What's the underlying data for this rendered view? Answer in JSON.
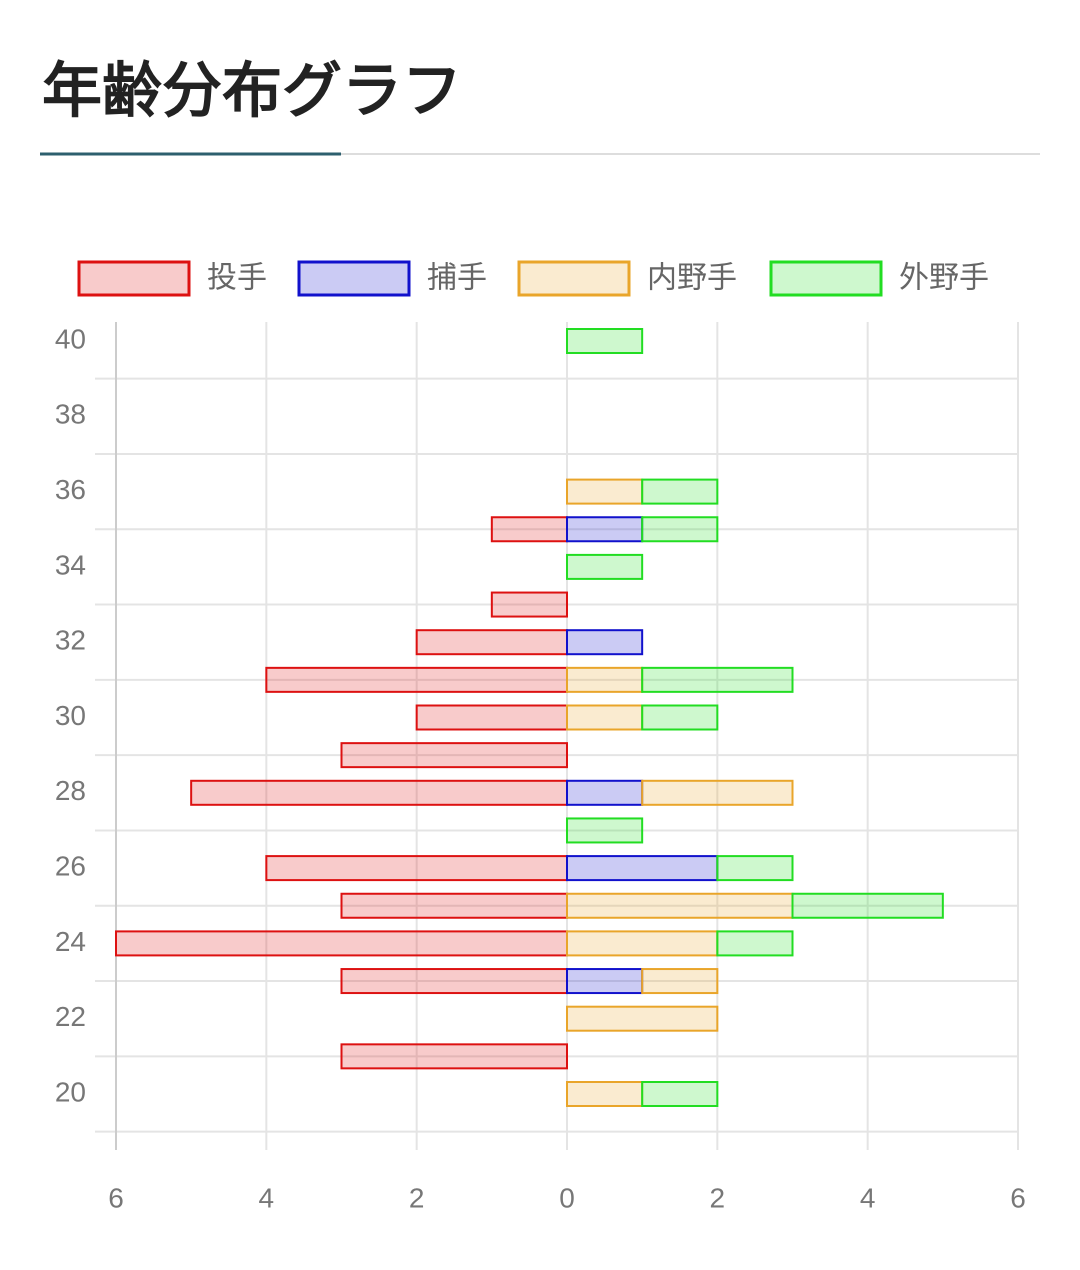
{
  "chart_data": {
    "type": "bar",
    "orientation": "horizontal",
    "stacked": true,
    "title": "年齢分布グラフ",
    "categories": [
      "40",
      null,
      "38",
      null,
      "36",
      null,
      "34",
      null,
      "32",
      null,
      "30",
      null,
      "28",
      null,
      "26",
      null,
      "24",
      null,
      "22",
      null,
      "20"
    ],
    "series": [
      {
        "name": "投手",
        "color": "#dd1111",
        "values": [
          null,
          null,
          null,
          null,
          null,
          -1,
          null,
          -1,
          -2,
          -4,
          -2,
          -3,
          -5,
          null,
          -4,
          -3,
          -6,
          -3,
          null,
          -3,
          null
        ]
      },
      {
        "name": "捕手",
        "color": "#1111cc",
        "values": [
          null,
          null,
          null,
          null,
          null,
          1,
          null,
          null,
          1,
          null,
          null,
          null,
          1,
          null,
          2,
          null,
          null,
          1,
          null,
          null,
          null
        ]
      },
      {
        "name": "内野手",
        "color": "#e9a52a",
        "values": [
          null,
          null,
          null,
          null,
          1,
          null,
          null,
          null,
          null,
          1,
          1,
          null,
          2,
          null,
          null,
          3,
          2,
          1,
          2,
          null,
          1
        ]
      },
      {
        "name": "外野手",
        "color": "#22dd22",
        "values": [
          1,
          null,
          null,
          null,
          1,
          1,
          1,
          null,
          null,
          2,
          1,
          null,
          null,
          1,
          1,
          2,
          1,
          null,
          null,
          null,
          1
        ]
      }
    ],
    "xlim": [
      -6,
      6
    ],
    "xticks": [
      {
        "value": -6,
        "label": "6"
      },
      {
        "value": -4,
        "label": "4"
      },
      {
        "value": -2,
        "label": "2"
      },
      0,
      2,
      4,
      6
    ],
    "grid": true,
    "legend": "top"
  }
}
